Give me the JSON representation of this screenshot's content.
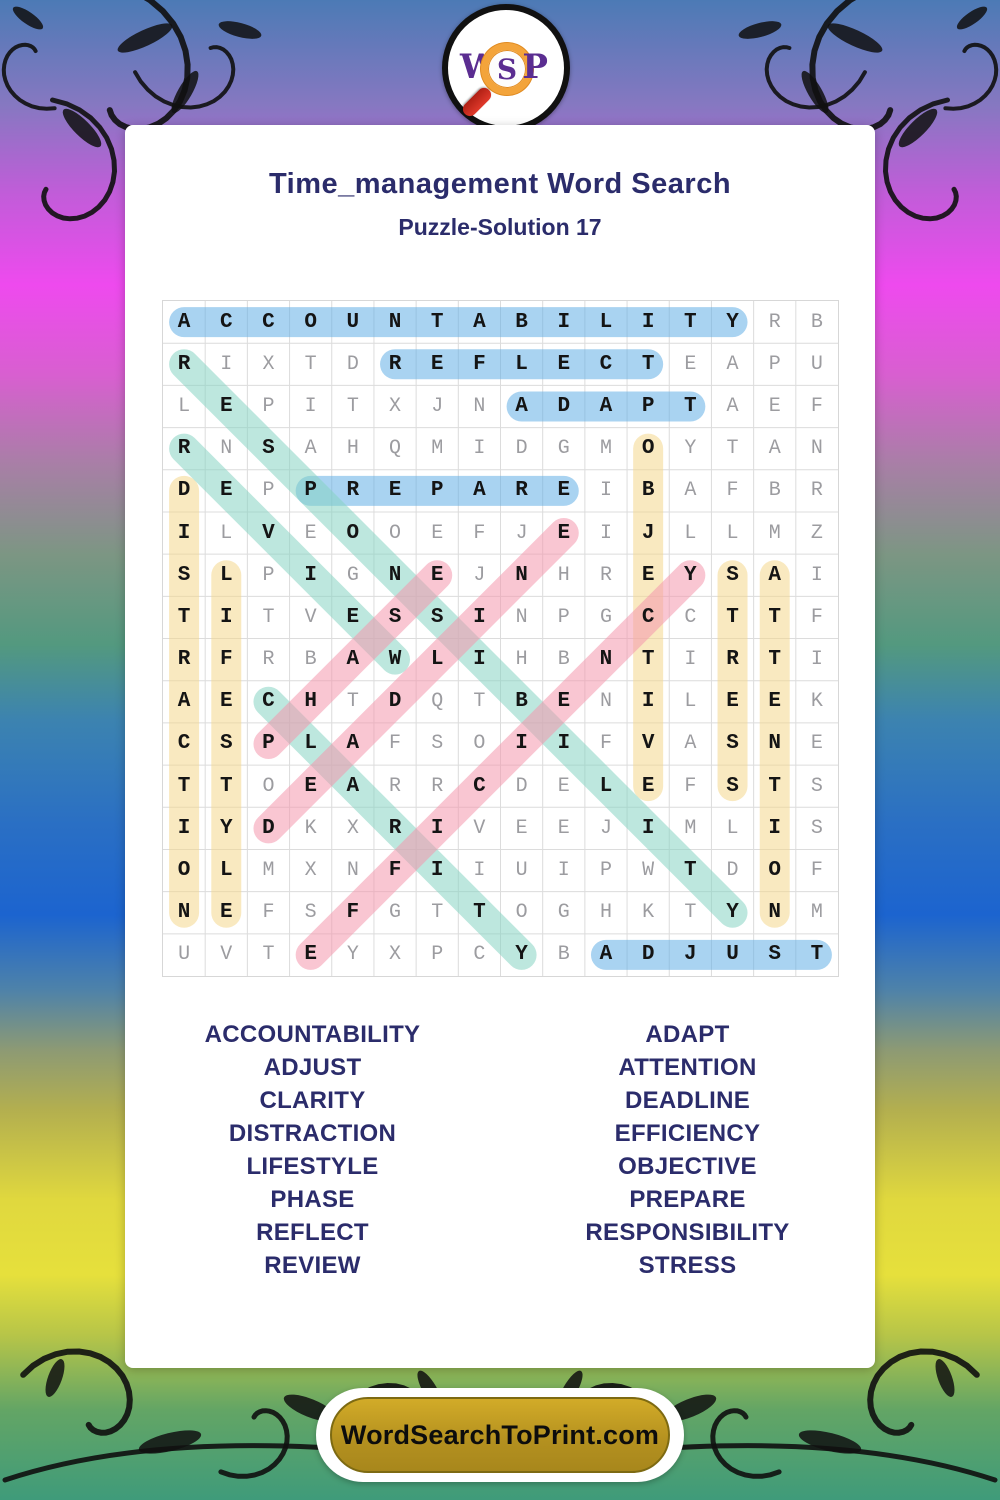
{
  "logo": {
    "letters": [
      "W",
      "S",
      "P"
    ]
  },
  "header": {
    "title": "Time_management Word Search",
    "subtitle": "Puzzle-Solution 17"
  },
  "grid": {
    "size": 16,
    "rows": [
      "ACCOUNTABILITYRB",
      "RIXTDREFLECTEAPU",
      "LEPITXJNADAPTAEF",
      "RNSAHQMIDGMOYTAN",
      "DEPPREPAREIBAFBR",
      "ILVEOOEFJEIJLLMZ",
      "SLPIGNEJNHREYSAI",
      "TITVESSINPGCCTTF",
      "RFRBAWLIHBNTIRTI",
      "AECHTDQTBENILEEK",
      "CSPLAFSOIIFVASNE",
      "TTOEARRCDELEFSTS",
      "IYDKXRIVEEJIMLIS",
      "OLMXNFIIUIPWTDOF",
      "NEFSFGTTOGHKTYNM",
      "UVTEYXPCYBADJUST"
    ]
  },
  "placements": [
    {
      "word": "ACCOUNTABILITY",
      "row": 1,
      "col": 1,
      "dir": "E",
      "color": "blue"
    },
    {
      "word": "REFLECT",
      "row": 2,
      "col": 6,
      "dir": "E",
      "color": "blue"
    },
    {
      "word": "ADAPT",
      "row": 3,
      "col": 9,
      "dir": "E",
      "color": "blue"
    },
    {
      "word": "PREPARE",
      "row": 5,
      "col": 4,
      "dir": "E",
      "color": "blue"
    },
    {
      "word": "ADJUST",
      "row": 16,
      "col": 11,
      "dir": "E",
      "color": "blue"
    },
    {
      "word": "DISTRACTION",
      "row": 5,
      "col": 1,
      "dir": "S",
      "color": "yellow"
    },
    {
      "word": "LIFESTYLE",
      "row": 7,
      "col": 2,
      "dir": "S",
      "color": "yellow"
    },
    {
      "word": "OBJECTIVE",
      "row": 4,
      "col": 12,
      "dir": "S",
      "color": "yellow"
    },
    {
      "word": "STRESS",
      "row": 7,
      "col": 14,
      "dir": "S",
      "color": "yellow"
    },
    {
      "word": "ATTENTION",
      "row": 7,
      "col": 15,
      "dir": "S",
      "color": "yellow"
    },
    {
      "word": "RESPONSIBILITY",
      "row": 2,
      "col": 1,
      "dir": "SE",
      "color": "teal"
    },
    {
      "word": "REVIEW",
      "row": 4,
      "col": 1,
      "dir": "SE",
      "color": "teal"
    },
    {
      "word": "CLARITY",
      "row": 10,
      "col": 3,
      "dir": "SE",
      "color": "teal"
    },
    {
      "word": "DEADLINE",
      "row": 13,
      "col": 3,
      "dir": "NE",
      "color": "pink"
    },
    {
      "word": "EFFICIENCY",
      "row": 16,
      "col": 4,
      "dir": "NE",
      "color": "pink"
    },
    {
      "word": "PHASE",
      "row": 11,
      "col": 3,
      "dir": "NE",
      "color": "pink"
    }
  ],
  "highlight_colors": {
    "blue": "rgba(99,175,230,0.55)",
    "yellow": "rgba(244,215,140,0.55)",
    "teal": "rgba(135,211,195,0.55)",
    "pink": "rgba(244,151,173,0.55)"
  },
  "word_list": {
    "left": [
      "ACCOUNTABILITY",
      "ADJUST",
      "CLARITY",
      "DISTRACTION",
      "LIFESTYLE",
      "PHASE",
      "REFLECT",
      "REVIEW"
    ],
    "right": [
      "ADAPT",
      "ATTENTION",
      "DEADLINE",
      "EFFICIENCY",
      "OBJECTIVE",
      "PREPARE",
      "RESPONSIBILITY",
      "STRESS"
    ]
  },
  "footer": {
    "site": "WordSearchToPrint.com"
  }
}
